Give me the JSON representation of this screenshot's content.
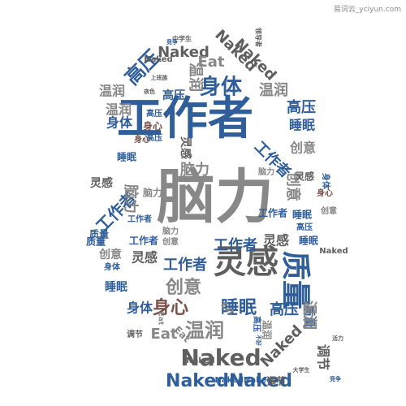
{
  "watermark": "易词云_yciyun.com",
  "palette": {
    "blue": "#2f5e9a",
    "gray": "#888888",
    "darkgray": "#5f5f5f",
    "brown": "#7a5148"
  },
  "words": [
    {
      "text": "工作者",
      "color": "blue"
    },
    {
      "text": "脑力",
      "color": "gray"
    },
    {
      "text": "灵感",
      "color": "darkgray"
    },
    {
      "text": "质量",
      "color": "blue"
    },
    {
      "text": "身心",
      "color": "brown"
    },
    {
      "text": "睡眠",
      "color": "blue"
    },
    {
      "text": "高压",
      "color": "blue"
    },
    {
      "text": "温润",
      "color": "gray"
    },
    {
      "text": "Naked",
      "color": "darkgray"
    },
    {
      "text": "NakedNaked",
      "color": "blue"
    },
    {
      "text": "Eat",
      "color": "gray"
    },
    {
      "text": "身体",
      "color": "blue"
    },
    {
      "text": "创意",
      "color": "gray"
    },
    {
      "text": "调节",
      "color": "darkgray"
    },
    {
      "text": "中学生",
      "color": "darkgray"
    },
    {
      "text": "领导者",
      "color": "darkgray"
    },
    {
      "text": "竞争",
      "color": "blue"
    },
    {
      "text": "上班族",
      "color": "darkgray"
    },
    {
      "text": "夜色",
      "color": "darkgray"
    },
    {
      "text": "大学生",
      "color": "darkgray"
    },
    {
      "text": "不好",
      "color": "blue"
    },
    {
      "text": "活力",
      "color": "darkgray"
    }
  ]
}
